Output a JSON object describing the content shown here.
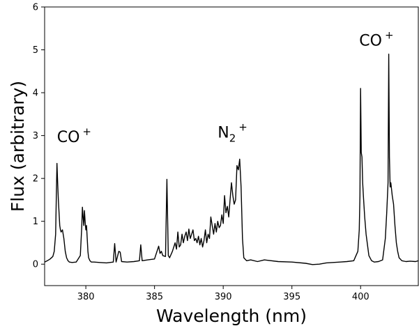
{
  "chart_data": {
    "type": "line",
    "title": "",
    "xlabel": "Wavelength (nm)",
    "ylabel": "Flux (arbitrary)",
    "xlim": [
      377.0,
      404.2
    ],
    "ylim": [
      -0.5,
      6.0
    ],
    "xticks": [
      380,
      385,
      390,
      395,
      400
    ],
    "yticks": [
      0,
      1,
      2,
      3,
      4,
      5,
      6
    ],
    "grid": false,
    "line_color": "#000000",
    "annotations": [
      {
        "base": "CO",
        "sup": "+",
        "sub": "",
        "x": 377.9,
        "y": 2.85
      },
      {
        "base": "N",
        "sub": "2",
        "sup": "+",
        "x": 389.6,
        "y": 2.95
      },
      {
        "base": "CO",
        "sup": "+",
        "sub": "",
        "x": 399.9,
        "y": 5.1
      }
    ],
    "series": [
      {
        "x": [
          377.0,
          377.2,
          377.4,
          377.6,
          377.7,
          377.8,
          377.85,
          377.9,
          377.95,
          378.0,
          378.05,
          378.1,
          378.15,
          378.2,
          378.3,
          378.4,
          378.5,
          378.6,
          378.7,
          378.8,
          379.0,
          379.3,
          379.6,
          379.7,
          379.75,
          379.8,
          379.85,
          379.9,
          379.95,
          380.0,
          380.05,
          380.1,
          380.15,
          380.2,
          380.3,
          380.4,
          380.6,
          381.0,
          381.5,
          382.0,
          382.1,
          382.2,
          382.4,
          382.5,
          382.6,
          383.0,
          383.5,
          383.9,
          384.0,
          384.1,
          384.5,
          385.0,
          385.3,
          385.4,
          385.5,
          385.6,
          385.8,
          385.9,
          386.0,
          386.1,
          386.3,
          386.5,
          386.6,
          386.7,
          386.8,
          386.9,
          387.0,
          387.1,
          387.2,
          387.3,
          387.4,
          387.5,
          387.6,
          387.7,
          387.8,
          387.9,
          388.0,
          388.1,
          388.2,
          388.3,
          388.4,
          388.5,
          388.6,
          388.7,
          388.8,
          388.9,
          389.0,
          389.1,
          389.2,
          389.3,
          389.4,
          389.5,
          389.6,
          389.7,
          389.8,
          389.9,
          390.0,
          390.1,
          390.2,
          390.3,
          390.4,
          390.5,
          390.6,
          390.7,
          390.8,
          390.9,
          391.0,
          391.1,
          391.2,
          391.3,
          391.4,
          391.5,
          391.7,
          392.0,
          392.5,
          393.0,
          394.0,
          395.0,
          396.0,
          396.5,
          397.0,
          397.5,
          398.0,
          398.5,
          399.0,
          399.5,
          399.8,
          399.9,
          399.95,
          400.0,
          400.05,
          400.1,
          400.15,
          400.2,
          400.3,
          400.4,
          400.5,
          400.6,
          400.8,
          401.0,
          401.3,
          401.6,
          401.8,
          401.9,
          402.0,
          402.05,
          402.1,
          402.15,
          402.2,
          402.3,
          402.4,
          402.5,
          402.6,
          402.7,
          402.8,
          403.0,
          403.3,
          403.6,
          404.0,
          404.2
        ],
        "y": [
          0.05,
          0.08,
          0.12,
          0.18,
          0.3,
          0.7,
          1.6,
          2.35,
          1.9,
          1.5,
          1.2,
          0.9,
          0.8,
          0.75,
          0.8,
          0.6,
          0.3,
          0.15,
          0.08,
          0.05,
          0.04,
          0.05,
          0.2,
          0.85,
          1.33,
          1.1,
          0.9,
          1.25,
          1.0,
          0.8,
          0.9,
          0.6,
          0.3,
          0.15,
          0.08,
          0.05,
          0.05,
          0.04,
          0.03,
          0.05,
          0.48,
          0.05,
          0.3,
          0.28,
          0.06,
          0.05,
          0.06,
          0.08,
          0.45,
          0.08,
          0.1,
          0.12,
          0.42,
          0.25,
          0.3,
          0.2,
          0.18,
          1.98,
          0.2,
          0.15,
          0.3,
          0.5,
          0.35,
          0.75,
          0.4,
          0.45,
          0.7,
          0.5,
          0.65,
          0.75,
          0.55,
          0.82,
          0.6,
          0.7,
          0.8,
          0.55,
          0.6,
          0.5,
          0.65,
          0.45,
          0.6,
          0.4,
          0.55,
          0.8,
          0.5,
          0.7,
          0.6,
          1.1,
          0.9,
          0.7,
          0.95,
          0.75,
          1.0,
          0.85,
          0.9,
          1.15,
          0.95,
          1.6,
          1.2,
          1.35,
          1.1,
          1.5,
          1.9,
          1.6,
          1.4,
          1.5,
          2.3,
          2.2,
          2.45,
          1.8,
          0.6,
          0.15,
          0.08,
          0.1,
          0.06,
          0.1,
          0.06,
          0.05,
          0.02,
          -0.01,
          0.0,
          0.03,
          0.04,
          0.05,
          0.06,
          0.08,
          0.3,
          0.8,
          1.6,
          4.1,
          2.6,
          2.5,
          1.9,
          1.6,
          1.1,
          0.7,
          0.45,
          0.2,
          0.08,
          0.05,
          0.06,
          0.1,
          0.6,
          1.2,
          1.9,
          4.9,
          2.5,
          1.8,
          1.9,
          1.6,
          1.4,
          0.9,
          0.5,
          0.3,
          0.15,
          0.08,
          0.06,
          0.07,
          0.06,
          0.08
        ]
      }
    ]
  }
}
